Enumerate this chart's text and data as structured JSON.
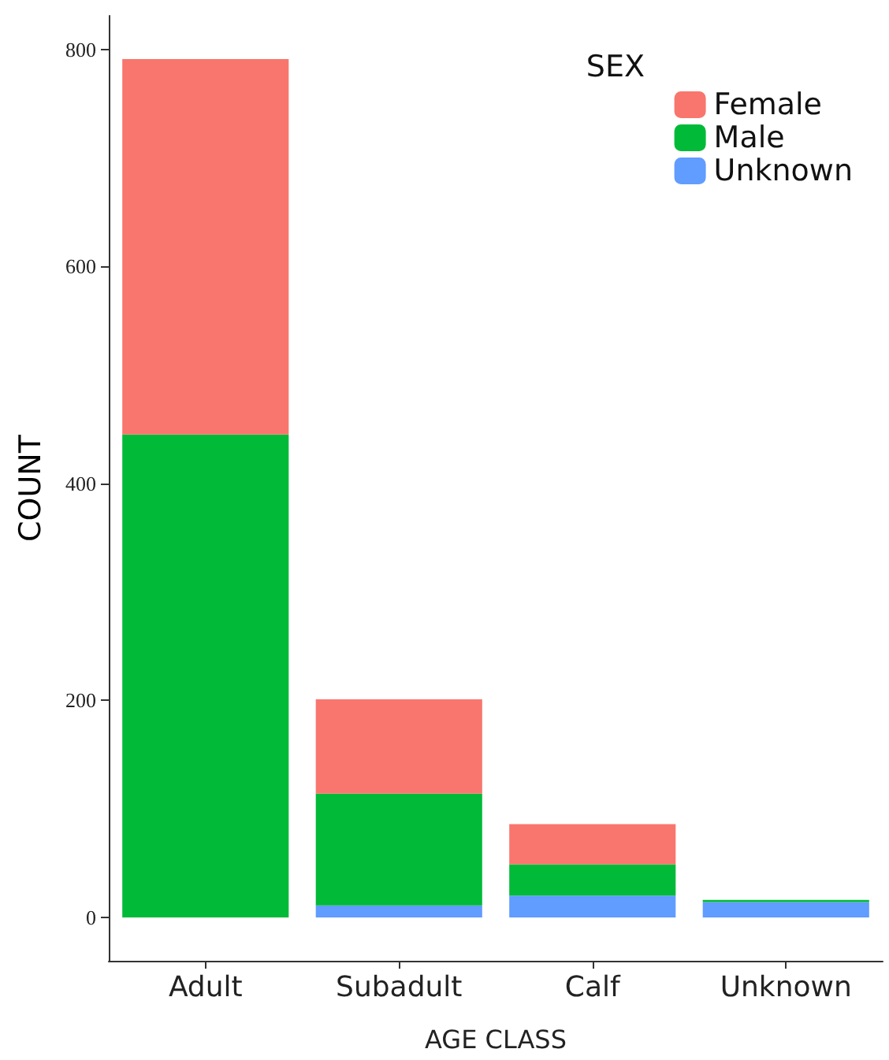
{
  "chart_data": {
    "type": "bar",
    "stacked": true,
    "xlabel": "AGE CLASS",
    "ylabel": "COUNT",
    "legend_title": "SEX",
    "legend": "top right",
    "grid": false,
    "categories": [
      "Adult",
      "Subadult",
      "Calf",
      "Unknown"
    ],
    "ylim": [
      -40,
      831
    ],
    "yticks": [
      0,
      200,
      400,
      600,
      800
    ],
    "series": [
      {
        "name": "Unknown",
        "color": "#619cff",
        "values": [
          0,
          11,
          20,
          14
        ]
      },
      {
        "name": "Male",
        "color": "#00ba38",
        "values": [
          445,
          103,
          29,
          2
        ]
      },
      {
        "name": "Female",
        "color": "#f8766d",
        "values": [
          346,
          87,
          37,
          0
        ]
      }
    ]
  }
}
